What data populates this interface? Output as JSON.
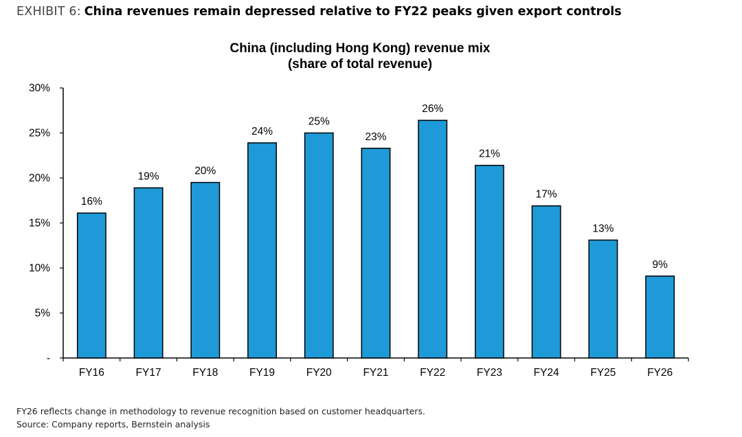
{
  "header": {
    "exhibit_label": "EXHIBIT 6:",
    "title": "China revenues remain depressed relative to FY22 peaks given export controls"
  },
  "chart_data": {
    "type": "bar",
    "title": "China (including Hong Kong) revenue mix",
    "subtitle": "(share of total revenue)",
    "xlabel": "",
    "ylabel": "",
    "categories": [
      "FY16",
      "FY17",
      "FY18",
      "FY19",
      "FY20",
      "FY21",
      "FY22",
      "FY23",
      "FY24",
      "FY25",
      "FY26"
    ],
    "values": [
      16.1,
      18.9,
      19.5,
      23.9,
      25.0,
      23.3,
      26.4,
      21.4,
      16.9,
      13.1,
      9.1
    ],
    "data_labels": [
      "16%",
      "19%",
      "20%",
      "24%",
      "25%",
      "23%",
      "26%",
      "21%",
      "17%",
      "13%",
      "9%"
    ],
    "ylim": [
      0,
      30
    ],
    "yticks": [
      0,
      5,
      10,
      15,
      20,
      25,
      30
    ],
    "ytick_labels": [
      "-",
      "5%",
      "10%",
      "15%",
      "20%",
      "25%",
      "30%"
    ],
    "grid": false,
    "colors": {
      "bar_fill": "#1f9ad8",
      "bar_stroke": "#000000",
      "axis": "#000000"
    }
  },
  "footnotes": {
    "note": "FY26 reflects change in methodology to revenue recognition based on customer headquarters.",
    "source": "Source: Company reports, Bernstein analysis"
  }
}
